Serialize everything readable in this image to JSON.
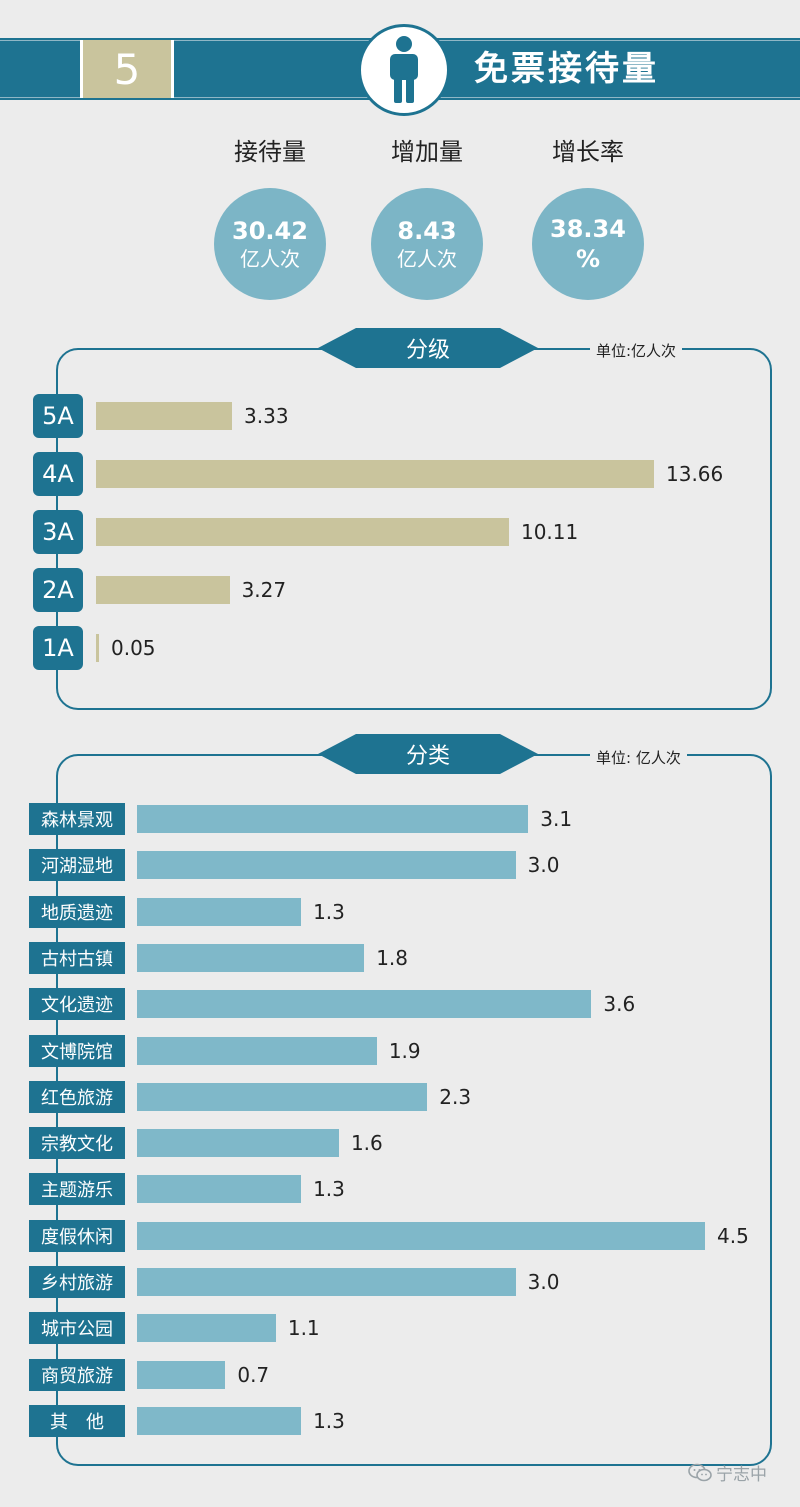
{
  "header": {
    "section_number": "5",
    "title": "免票接待量",
    "icon": "person-icon"
  },
  "stats": [
    {
      "label": "接待量",
      "value": "30.42",
      "unit": "亿人次"
    },
    {
      "label": "增加量",
      "value": "8.43",
      "unit": "亿人次"
    },
    {
      "label": "增长率",
      "value": "38.34",
      "unit": "%"
    }
  ],
  "chart_data": [
    {
      "type": "bar",
      "orientation": "horizontal",
      "title": "分级",
      "unit": "单位:亿人次",
      "categories": [
        "5A",
        "4A",
        "3A",
        "2A",
        "1A"
      ],
      "values": [
        3.33,
        13.66,
        10.11,
        3.27,
        0.05
      ],
      "value_labels": [
        "3.33",
        "13.66",
        "10.11",
        "3.27",
        "0.05"
      ],
      "xlim": [
        0,
        13.66
      ],
      "bar_color": "#c9c49d",
      "label_color": "#1e7391",
      "grid": false
    },
    {
      "type": "bar",
      "orientation": "horizontal",
      "title": "分类",
      "unit": "单位: 亿人次",
      "categories": [
        "森林景观",
        "河湖湿地",
        "地质遗迹",
        "古村古镇",
        "文化遗迹",
        "文博院馆",
        "红色旅游",
        "宗教文化",
        "主题游乐",
        "度假休闲",
        "乡村旅游",
        "城市公园",
        "商贸旅游",
        "其　他"
      ],
      "values": [
        3.1,
        3.0,
        1.3,
        1.8,
        3.6,
        1.9,
        2.3,
        1.6,
        1.3,
        4.5,
        3.0,
        1.1,
        0.7,
        1.3
      ],
      "value_labels": [
        "3.1",
        "3.0",
        "1.3",
        "1.8",
        "3.6",
        "1.9",
        "2.3",
        "1.6",
        "1.3",
        "4.5",
        "3.0",
        "1.1",
        "0.7",
        "1.3"
      ],
      "xlim": [
        0,
        4.5
      ],
      "bar_color": "#7fb8c9",
      "label_color": "#1e7391",
      "grid": false
    }
  ],
  "watermark": {
    "text": "宁志中",
    "icon": "wechat-icon"
  },
  "colors": {
    "accent": "#1e7391",
    "tan": "#c9c49d",
    "light_blue": "#7cb5c6",
    "background": "#ececec"
  }
}
